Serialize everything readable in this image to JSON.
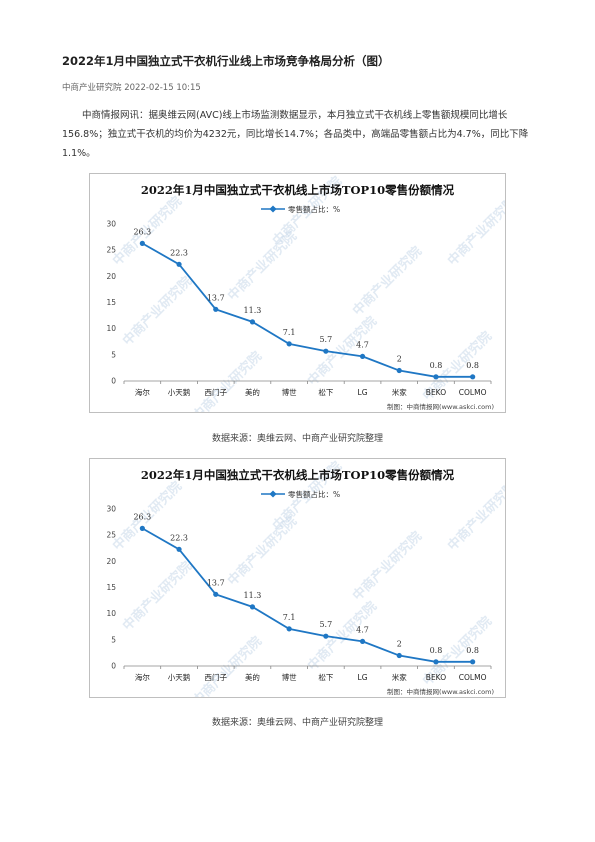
{
  "article": {
    "title": "2022年1月中国独立式干衣机行业线上市场竞争格局分析（图）",
    "source": "中商产业研究院",
    "date": "2022-02-15 10:15",
    "paragraph": "中商情报网讯：据奥维云网(AVC)线上市场监测数据显示，本月独立式干衣机线上零售额规模同比增长156.8%；独立式干衣机的均价为4232元，同比增长14.7%；各品类中，高端品零售额占比为4.7%，同比下降1.1%。"
  },
  "figures": [
    {
      "caption": "数据来源：奥维云网、中商产业研究院整理"
    },
    {
      "caption": "数据来源：奥维云网、中商产业研究院整理"
    }
  ],
  "watermark": "中商产业研究院",
  "chart_data": [
    {
      "type": "line",
      "title": "2022年1月中国独立式干衣机线上市场TOP10零售份额情况",
      "legend": "零售额占比：%",
      "legend_position": "top-center",
      "credit": "制图：中商情报网(www.askci.com)",
      "categories": [
        "海尔",
        "小天鹅",
        "西门子",
        "美的",
        "博世",
        "松下",
        "LG",
        "米家",
        "BEKO",
        "COLMO"
      ],
      "series": [
        {
          "name": "零售额占比：%",
          "values": [
            26.3,
            22.3,
            13.7,
            11.3,
            7.1,
            5.7,
            4.7,
            2,
            0.8,
            0.8
          ]
        }
      ],
      "data_labels": [
        "26.3",
        "22.3",
        "13.7",
        "11.3",
        "7.1",
        "5.7",
        "4.7",
        "2",
        "0.8",
        "0.8"
      ],
      "ylim": [
        0,
        30
      ],
      "yticks": [
        0,
        5,
        10,
        15,
        20,
        25,
        30
      ],
      "grid": false,
      "color": "#1f77c4"
    },
    {
      "type": "line",
      "title": "2022年1月中国独立式干衣机线上市场TOP10零售份额情况",
      "legend": "零售额占比：%",
      "legend_position": "top-center",
      "credit": "制图：中商情报网(www.askci.com)",
      "categories": [
        "海尔",
        "小天鹅",
        "西门子",
        "美的",
        "博世",
        "松下",
        "LG",
        "米家",
        "BEKO",
        "COLMO"
      ],
      "series": [
        {
          "name": "零售额占比：%",
          "values": [
            26.3,
            22.3,
            13.7,
            11.3,
            7.1,
            5.7,
            4.7,
            2,
            0.8,
            0.8
          ]
        }
      ],
      "data_labels": [
        "26.3",
        "22.3",
        "13.7",
        "11.3",
        "7.1",
        "5.7",
        "4.7",
        "2",
        "0.8",
        "0.8"
      ],
      "ylim": [
        0,
        30
      ],
      "yticks": [
        0,
        5,
        10,
        15,
        20,
        25,
        30
      ],
      "grid": false,
      "color": "#1f77c4"
    }
  ]
}
